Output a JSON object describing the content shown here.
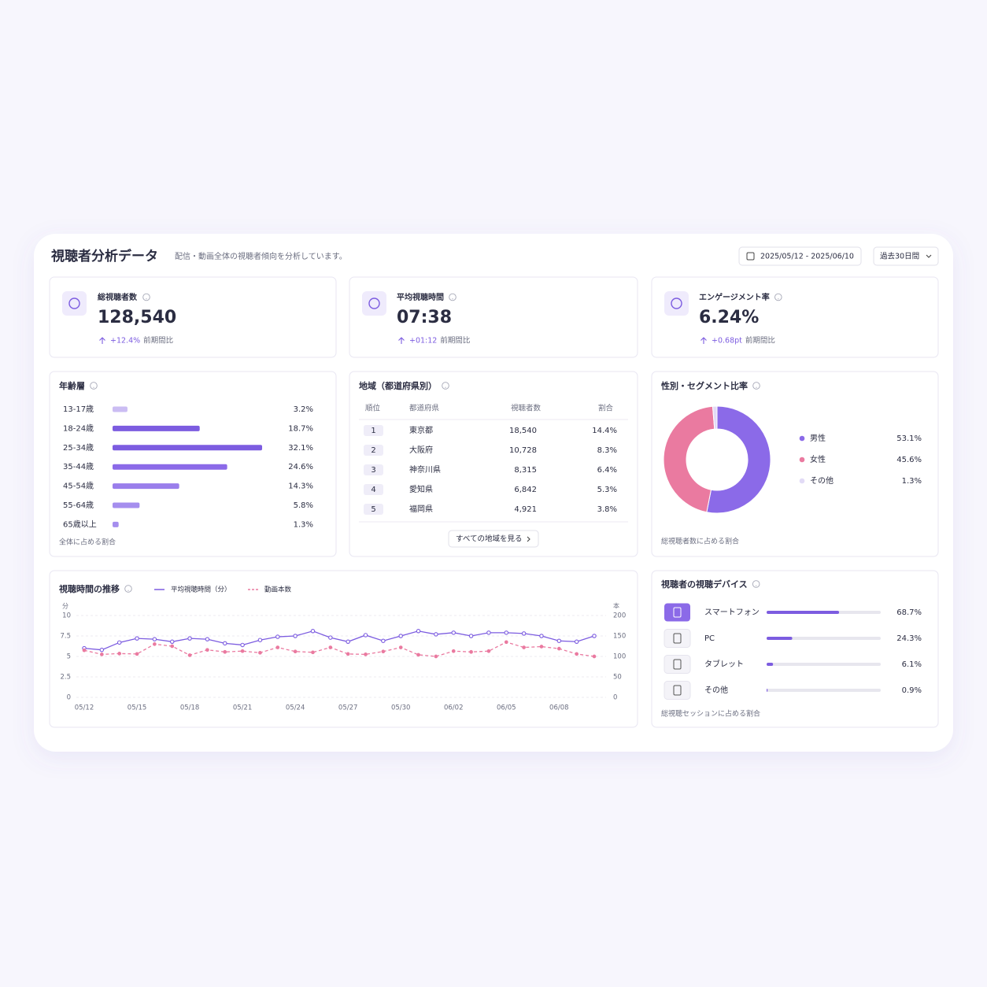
{
  "header": {
    "title": "視聴者分析データ",
    "subtitle": "配信・動画全体の視聴者傾向を分析しています。",
    "date_range": "2025/05/12 - 2025/06/10",
    "period": "過去30日間"
  },
  "kpis": [
    {
      "label": "総視聴者数",
      "value": "128,540",
      "change": "+12.4%",
      "change_note": "前期間比"
    },
    {
      "label": "平均視聴時間",
      "value": "07:38",
      "change": "+01:12",
      "change_note": "前期間比"
    },
    {
      "label": "エンゲージメント率",
      "value": "6.24%",
      "change": "+0.68pt",
      "change_note": "前期間比"
    }
  ],
  "age": {
    "type": "bar",
    "title": "年齢層",
    "categories": [
      "13-17歳",
      "18-24歳",
      "25-34歳",
      "35-44歳",
      "45-54歳",
      "55-64歳",
      "65歳以上"
    ],
    "values": [
      3.2,
      18.7,
      32.1,
      24.6,
      14.3,
      5.8,
      1.3
    ],
    "value_labels": [
      "3.2%",
      "18.7%",
      "32.1%",
      "24.6%",
      "14.3%",
      "5.8%",
      "1.3%"
    ],
    "colors": [
      "#cbbdf3",
      "#7c5ce0",
      "#7c5ce0",
      "#8b6ae8",
      "#9a7eeb",
      "#a58eee",
      "#a58eee"
    ],
    "footnote": "全体に占める割合"
  },
  "region": {
    "title": "地域（都道府県別）",
    "columns": [
      "順位",
      "都道府県",
      "視聴者数",
      "割合"
    ],
    "rows": [
      [
        "1",
        "東京都",
        "18,540",
        "14.4%"
      ],
      [
        "2",
        "大阪府",
        "10,728",
        "8.3%"
      ],
      [
        "3",
        "神奈川県",
        "8,315",
        "6.4%"
      ],
      [
        "4",
        "愛知県",
        "6,842",
        "5.3%"
      ],
      [
        "5",
        "福岡県",
        "4,921",
        "3.8%"
      ]
    ],
    "link": "すべての地域を見る"
  },
  "gender": {
    "type": "pie",
    "title": "性別・セグメント比率",
    "categories": [
      "男性",
      "女性",
      "その他"
    ],
    "values": [
      53.1,
      45.6,
      1.3
    ],
    "value_labels": [
      "53.1%",
      "45.6%",
      "1.3%"
    ],
    "colors": [
      "#8b6ae8",
      "#ea7aa0",
      "#e2dbf6"
    ],
    "footnote": "総視聴者数に占める割合"
  },
  "trend": {
    "type": "line",
    "title": "視聴時間の推移",
    "x": [
      "05/12",
      null,
      null,
      "05/15",
      null,
      null,
      "05/18",
      null,
      null,
      "05/21",
      null,
      null,
      "05/24",
      null,
      null,
      "05/27",
      null,
      null,
      "05/30",
      null,
      null,
      "06/02",
      null,
      null,
      "06/05",
      null,
      null,
      "06/08",
      null,
      null
    ],
    "series": [
      {
        "name": "平均視聴時間（分）",
        "color": "#7c5ce0",
        "values": [
          6.0,
          5.8,
          6.7,
          7.2,
          7.1,
          6.8,
          7.2,
          7.1,
          6.6,
          6.4,
          7.0,
          7.4,
          7.5,
          8.1,
          7.3,
          6.8,
          7.6,
          6.9,
          7.5,
          8.1,
          7.7,
          7.9,
          7.5,
          7.9,
          7.9,
          7.8,
          7.5,
          6.9,
          6.8,
          7.5
        ]
      },
      {
        "name": "動画本数",
        "color": "#ea7aa0",
        "axis": "y2",
        "dashed": true,
        "values": [
          115,
          105,
          107,
          106,
          130,
          125,
          103,
          116,
          111,
          113,
          109,
          122,
          112,
          110,
          122,
          106,
          105,
          112,
          122,
          104,
          100,
          113,
          111,
          113,
          135,
          122,
          124,
          119,
          106,
          100
        ]
      }
    ],
    "ylim": [
      0,
      10
    ],
    "yticks": [
      0,
      2.5,
      5,
      7.5,
      10
    ],
    "y2lim": [
      0,
      200
    ],
    "y2ticks": [
      0,
      50,
      100,
      150,
      200
    ],
    "y_unit": "分",
    "y2_unit": "本",
    "grid": true
  },
  "devices": {
    "type": "bar",
    "title": "視聴者の視聴デバイス",
    "categories": [
      "スマートフォン",
      "PC",
      "タブレット",
      "その他"
    ],
    "values": [
      68.7,
      24.3,
      6.1,
      0.9
    ],
    "value_labels": [
      "68.7%",
      "24.3%",
      "6.1%",
      "0.9%"
    ],
    "color": "#7c5ce0",
    "footnote": "総視聴セッションに占める割合"
  }
}
